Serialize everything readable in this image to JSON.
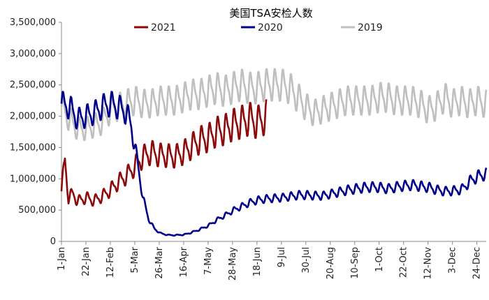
{
  "chart_data": {
    "type": "line",
    "title": "美国TSA安检人数",
    "xlabel": "",
    "ylabel": "",
    "x_tick_labels": [
      "1-Jan",
      "22-Jan",
      "12-Feb",
      "5-Mar",
      "26-Mar",
      "16-Apr",
      "7-May",
      "28-May",
      "18-Jun",
      "9-Jul",
      "30-Jul",
      "20-Aug",
      "10-Sep",
      "1-Oct",
      "22-Oct",
      "12-Nov",
      "3-Dec",
      "24-Dec"
    ],
    "y_tick_labels": [
      "0",
      "500,000",
      "1,000,000",
      "1,500,000",
      "2,000,000",
      "2,500,000",
      "3,000,000",
      "3,500,000"
    ],
    "ylim": [
      0,
      3500000
    ],
    "x_range_days": [
      0,
      365
    ],
    "grid": false,
    "legend_position": "top",
    "series": [
      {
        "name": "2021",
        "color": "#8B0A0A",
        "approx_points": [
          [
            0,
            800000
          ],
          [
            3,
            1300000
          ],
          [
            6,
            700000
          ],
          [
            10,
            760000
          ],
          [
            14,
            640000
          ],
          [
            21,
            700000
          ],
          [
            28,
            650000
          ],
          [
            35,
            720000
          ],
          [
            42,
            820000
          ],
          [
            49,
            950000
          ],
          [
            56,
            1050000
          ],
          [
            63,
            1200000
          ],
          [
            70,
            1350000
          ],
          [
            77,
            1420000
          ],
          [
            84,
            1380000
          ],
          [
            91,
            1370000
          ],
          [
            98,
            1360000
          ],
          [
            105,
            1420000
          ],
          [
            112,
            1520000
          ],
          [
            119,
            1620000
          ],
          [
            126,
            1650000
          ],
          [
            133,
            1750000
          ],
          [
            140,
            1780000
          ],
          [
            147,
            1860000
          ],
          [
            154,
            1900000
          ],
          [
            161,
            1960000
          ],
          [
            168,
            1900000
          ],
          [
            173,
            1950000
          ],
          [
            176,
            2000000
          ]
        ]
      },
      {
        "name": "2020",
        "color": "#00008B",
        "approx_points": [
          [
            0,
            2200000
          ],
          [
            7,
            2150000
          ],
          [
            14,
            1950000
          ],
          [
            21,
            2000000
          ],
          [
            28,
            2050000
          ],
          [
            35,
            2150000
          ],
          [
            42,
            2200000
          ],
          [
            49,
            2150000
          ],
          [
            56,
            2050000
          ],
          [
            60,
            1850000
          ],
          [
            65,
            1300000
          ],
          [
            70,
            700000
          ],
          [
            75,
            350000
          ],
          [
            80,
            200000
          ],
          [
            85,
            130000
          ],
          [
            92,
            100000
          ],
          [
            99,
            100000
          ],
          [
            106,
            110000
          ],
          [
            113,
            150000
          ],
          [
            120,
            200000
          ],
          [
            127,
            260000
          ],
          [
            134,
            350000
          ],
          [
            141,
            420000
          ],
          [
            148,
            500000
          ],
          [
            155,
            560000
          ],
          [
            162,
            620000
          ],
          [
            169,
            660000
          ],
          [
            176,
            680000
          ],
          [
            183,
            690000
          ],
          [
            190,
            700000
          ],
          [
            197,
            720000
          ],
          [
            204,
            740000
          ],
          [
            211,
            740000
          ],
          [
            218,
            730000
          ],
          [
            225,
            730000
          ],
          [
            232,
            760000
          ],
          [
            239,
            790000
          ],
          [
            246,
            820000
          ],
          [
            253,
            840000
          ],
          [
            260,
            860000
          ],
          [
            267,
            870000
          ],
          [
            274,
            860000
          ],
          [
            281,
            840000
          ],
          [
            288,
            870000
          ],
          [
            295,
            890000
          ],
          [
            302,
            900000
          ],
          [
            309,
            880000
          ],
          [
            316,
            860000
          ],
          [
            323,
            820000
          ],
          [
            330,
            800000
          ],
          [
            337,
            810000
          ],
          [
            344,
            830000
          ],
          [
            351,
            960000
          ],
          [
            358,
            1040000
          ],
          [
            365,
            1080000
          ]
        ]
      },
      {
        "name": "2019",
        "color": "#BFBFBF",
        "approx_points": [
          [
            0,
            2150000
          ],
          [
            7,
            1950000
          ],
          [
            14,
            1800000
          ],
          [
            21,
            1800000
          ],
          [
            28,
            1850000
          ],
          [
            35,
            1900000
          ],
          [
            42,
            2100000
          ],
          [
            49,
            2150000
          ],
          [
            56,
            2200000
          ],
          [
            63,
            2250000
          ],
          [
            70,
            2200000
          ],
          [
            77,
            2200000
          ],
          [
            84,
            2250000
          ],
          [
            91,
            2250000
          ],
          [
            98,
            2250000
          ],
          [
            105,
            2300000
          ],
          [
            112,
            2350000
          ],
          [
            119,
            2350000
          ],
          [
            126,
            2400000
          ],
          [
            133,
            2450000
          ],
          [
            140,
            2400000
          ],
          [
            147,
            2450000
          ],
          [
            154,
            2500000
          ],
          [
            161,
            2450000
          ],
          [
            168,
            2450000
          ],
          [
            175,
            2500000
          ],
          [
            182,
            2500000
          ],
          [
            189,
            2500000
          ],
          [
            196,
            2450000
          ],
          [
            203,
            2300000
          ],
          [
            210,
            2150000
          ],
          [
            217,
            2050000
          ],
          [
            224,
            2100000
          ],
          [
            231,
            2150000
          ],
          [
            238,
            2200000
          ],
          [
            245,
            2250000
          ],
          [
            252,
            2250000
          ],
          [
            259,
            2250000
          ],
          [
            266,
            2250000
          ],
          [
            273,
            2300000
          ],
          [
            280,
            2300000
          ],
          [
            287,
            2250000
          ],
          [
            294,
            2250000
          ],
          [
            301,
            2250000
          ],
          [
            308,
            2200000
          ],
          [
            315,
            2100000
          ],
          [
            322,
            2150000
          ],
          [
            329,
            2300000
          ],
          [
            336,
            2200000
          ],
          [
            343,
            2250000
          ],
          [
            350,
            2200000
          ],
          [
            357,
            2250000
          ],
          [
            365,
            2200000
          ]
        ]
      }
    ]
  }
}
